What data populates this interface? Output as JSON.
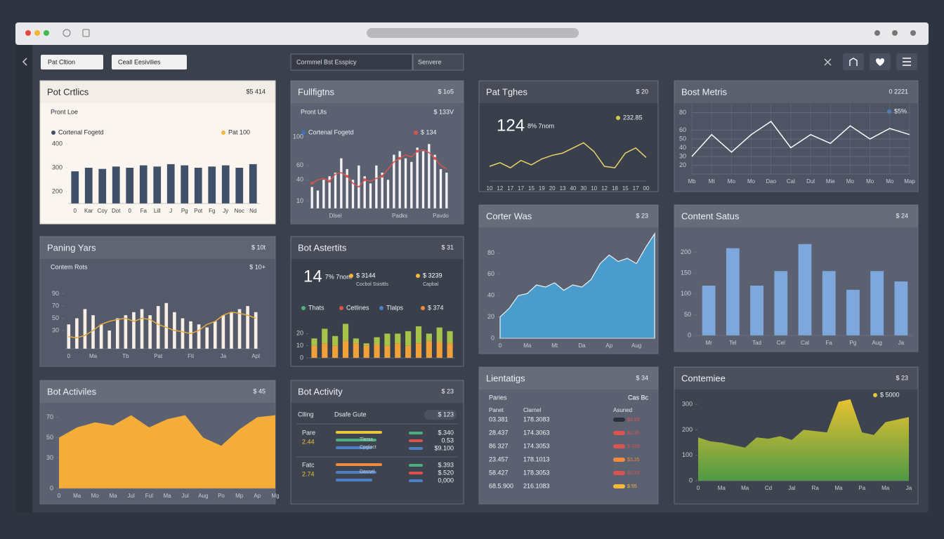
{
  "toolbar": {
    "filter1": "Pat Cltion",
    "filter2": "Ceall Eesivilies",
    "search": "Cormmel Bst Esspicy",
    "select": "Senvere"
  },
  "chart_data": [
    {
      "type": "bar",
      "theme": "light",
      "background": "#fbf5f0",
      "title": "Pot Crtlics",
      "badge": "$5 414",
      "subtitle": "Pront Loe",
      "legend": [
        {
          "label": "Cortenal Fogetd",
          "color": "#3f5068"
        },
        {
          "label": "Pat 100",
          "color": "#f5b83d"
        }
      ],
      "categories": [
        "0",
        "Kar",
        "Coy",
        "Dot",
        "0",
        "Fa",
        "Lill",
        "J",
        "Pg",
        "Pot",
        "Fg",
        "Jy",
        "Noc",
        "Nd"
      ],
      "series": [
        {
          "color": "#3f5068",
          "values": [
            285,
            300,
            295,
            305,
            300,
            310,
            305,
            315,
            310,
            300,
            305,
            310,
            300,
            315
          ]
        }
      ],
      "ylim": [
        150,
        400
      ],
      "yticks": [
        200,
        300,
        400
      ]
    },
    {
      "type": "combo",
      "theme": "dark",
      "background": "#5b6170",
      "title": "Fullfigtns",
      "badge": "$ 1o5",
      "subtitle": "Pront Uls",
      "subtitle2": "$ 133V",
      "legend": [
        {
          "label": "Cortenal Fogetd",
          "color": "#3f72b8"
        },
        {
          "label": "$ 134",
          "color": "#d9534f"
        }
      ],
      "categories": [
        null,
        null,
        null,
        null,
        "Dlsel",
        null,
        null,
        null,
        null,
        null,
        null,
        null,
        null,
        null,
        null,
        "Padks",
        null,
        null,
        null,
        null,
        null,
        null,
        "Pavdo",
        null
      ],
      "series": [
        {
          "color": "#f4f4f6",
          "values": [
            30,
            25,
            40,
            45,
            50,
            70,
            55,
            40,
            60,
            45,
            35,
            60,
            50,
            40,
            75,
            80,
            70,
            65,
            85,
            80,
            90,
            75,
            55,
            50
          ]
        },
        {
          "color": "#d9534f",
          "values": [
            35,
            40,
            42,
            38,
            48,
            50,
            45,
            35,
            30,
            40,
            38,
            42,
            45,
            55,
            65,
            70,
            75,
            72,
            80,
            82,
            78,
            70,
            60,
            55
          ]
        }
      ],
      "ylim": [
        0,
        100
      ],
      "yticks": [
        10,
        40,
        60,
        100
      ]
    },
    {
      "type": "line",
      "theme": "dark",
      "background": "#3a3f4c",
      "title": "Pat Tghes",
      "badge": "$ 20",
      "kpi": "124",
      "kpi_sub": "8% 7nom",
      "legend": [
        {
          "label": "232.85",
          "color": "#c8d34a"
        }
      ],
      "categories": [
        "10",
        "12",
        "17",
        "17",
        "15",
        "19",
        "20",
        "13",
        "40",
        "30",
        "10",
        "12",
        "18",
        "15",
        "17",
        "00"
      ],
      "series": [
        {
          "color": "#e8d36a",
          "values": [
            20,
            25,
            18,
            28,
            22,
            30,
            35,
            38,
            45,
            52,
            40,
            20,
            18,
            38,
            45,
            32
          ]
        }
      ],
      "ylim": [
        0,
        60
      ]
    },
    {
      "type": "line",
      "theme": "dark",
      "background": "#4e5464",
      "title": "Bost Metris",
      "badge": "0 2221",
      "grid": true,
      "legend": [
        {
          "label": "$5%",
          "color": "#4d7fc4"
        }
      ],
      "categories": [
        "Mb",
        "Mt",
        "Mo",
        "Mo",
        "Dao",
        "Cal",
        "Dul",
        "Mie",
        "Mo",
        "Mo",
        "Mo",
        "Map"
      ],
      "series": [
        {
          "color": "#ffffff",
          "values": [
            30,
            55,
            35,
            55,
            70,
            40,
            55,
            45,
            65,
            50,
            62,
            55
          ]
        }
      ],
      "ylim": [
        10,
        90
      ],
      "yticks": [
        20,
        30,
        40,
        50,
        60,
        80
      ]
    },
    {
      "type": "combo",
      "theme": "dark",
      "background": "#545a6a",
      "title": "Paning Yars",
      "badge": "$ 10t",
      "subtitle": "Contem Rots",
      "subtitle2": "$ 10+",
      "legend": [],
      "categories": [
        "0",
        null,
        null,
        "Ma",
        null,
        null,
        null,
        "Tb",
        null,
        null,
        null,
        "Pat",
        null,
        null,
        null,
        "Fti",
        null,
        null,
        null,
        "Ja",
        null,
        null,
        null,
        "Apl"
      ],
      "series": [
        {
          "color": "#f7efe6",
          "values": [
            40,
            50,
            65,
            55,
            40,
            30,
            50,
            55,
            60,
            65,
            55,
            70,
            75,
            60,
            50,
            45,
            40,
            35,
            45,
            55,
            60,
            65,
            70,
            60
          ]
        },
        {
          "color": "#e6a840",
          "values": [
            20,
            18,
            22,
            30,
            40,
            45,
            48,
            50,
            45,
            50,
            48,
            40,
            35,
            30,
            28,
            25,
            30,
            40,
            45,
            55,
            60,
            58,
            55,
            50
          ]
        }
      ],
      "ylim": [
        0,
        100
      ],
      "yticks": [
        30,
        50,
        70,
        90
      ]
    },
    {
      "type": "stacked",
      "theme": "dark",
      "background": "#3a3f4c",
      "title": "Bot Astertits",
      "badge": "$ 31",
      "kpi": "14",
      "kpi_sub": "7% 7nom",
      "extra": [
        {
          "text": "$ 3144",
          "caption": "Cocbol Ssisttls",
          "color": "#f5b83d"
        },
        {
          "text": "$ 3239",
          "caption": "Capbal",
          "color": "#f5b83d"
        }
      ],
      "legend": [
        {
          "label": "Thats",
          "color": "#4caf7d"
        },
        {
          "label": "Cetlines",
          "color": "#d9534f"
        },
        {
          "label": "Tlalps",
          "color": "#4d7fc4"
        },
        {
          "label": "$ 374",
          "color": "#f08a3e"
        }
      ],
      "categories": [
        null,
        null,
        null,
        null,
        null,
        null,
        null,
        null,
        null,
        null,
        null,
        null,
        null,
        null
      ],
      "series": [
        {
          "color": "#f0a13a",
          "values": [
            10,
            12,
            10,
            14,
            12,
            10,
            11,
            10,
            12,
            10,
            12,
            14,
            13,
            12
          ]
        },
        {
          "color": "#a9c24a",
          "values": [
            6,
            12,
            8,
            14,
            4,
            2,
            6,
            10,
            8,
            12,
            14,
            6,
            12,
            10
          ]
        }
      ],
      "ylim": [
        0,
        30
      ],
      "yticks": [
        0,
        10,
        20
      ]
    },
    {
      "type": "area",
      "theme": "dark",
      "background": "#5b6170",
      "title": "Corter Was",
      "badge": "$ 23",
      "legend": [],
      "categories": [
        "0",
        null,
        null,
        "Ma",
        null,
        null,
        "Mt",
        null,
        null,
        "Da",
        null,
        null,
        "Ap",
        null,
        null,
        "Aug",
        null,
        null
      ],
      "series": [
        {
          "color": "#4a9ccc",
          "values": [
            20,
            28,
            40,
            42,
            50,
            48,
            52,
            45,
            50,
            48,
            55,
            70,
            78,
            72,
            75,
            70,
            85,
            98
          ]
        }
      ],
      "ylim": [
        0,
        100
      ],
      "yticks": [
        0,
        20,
        40,
        60,
        80
      ]
    },
    {
      "type": "bar",
      "theme": "dark",
      "background": "#5b6170",
      "title": "Content Satus",
      "badge": "$ 24",
      "legend": [],
      "categories": [
        "Mr",
        "Tel",
        "Tad",
        "Cel",
        "Cal",
        "Fa",
        "Pg",
        "Aug",
        "Ja"
      ],
      "series": [
        {
          "color": "#7ea7dc",
          "values": [
            120,
            210,
            120,
            155,
            220,
            155,
            110,
            155,
            130
          ]
        }
      ],
      "ylim": [
        0,
        250
      ],
      "yticks": [
        0,
        50,
        100,
        150,
        200
      ]
    },
    {
      "type": "area",
      "theme": "dark",
      "background": "#5b6170",
      "title": "Bot Activiles",
      "badge": "$ 45",
      "legend": [],
      "categories": [
        "0",
        "Ma",
        "Mo",
        "Ma",
        "Jul",
        "Ful",
        "Ma",
        "Jul",
        "Aug",
        "Po",
        "Mp",
        "Ap",
        "Mg"
      ],
      "series": [
        {
          "color": "#f5ad3a",
          "values": [
            50,
            60,
            65,
            62,
            72,
            60,
            68,
            72,
            50,
            42,
            58,
            70,
            72
          ]
        }
      ],
      "ylim": [
        0,
        80
      ],
      "yticks": [
        0,
        30,
        50,
        70
      ]
    },
    {
      "type": "list",
      "theme": "dark",
      "background": "#3e4350",
      "title": "Bot Activity",
      "badge": "$ 23",
      "header": [
        "Clling",
        "Dsafe Gute",
        "$ 123"
      ],
      "rows": [
        {
          "name": "Pare",
          "figure": "2.44",
          "notes": [
            "Tlerss",
            "Cpglact"
          ],
          "amounts": [
            "$.340",
            "0.53",
            "$9.100"
          ]
        },
        {
          "name": "Fatc",
          "figure": "2.74",
          "notes": [
            "Dassel"
          ],
          "amounts": [
            "$.393",
            "$.520",
            "0,000"
          ]
        }
      ]
    },
    {
      "type": "table",
      "theme": "dark",
      "background": "#5b6170",
      "title": "Lientatigs",
      "badge": "$ 34",
      "subtitle": "Paries",
      "subtitle2": "Cas Bc",
      "columns": [
        "Panet",
        "Clarnel",
        "Asuned"
      ],
      "rows": [
        [
          "03.381",
          "178.3083",
          "$3.33"
        ],
        [
          "28.437",
          "174.3063",
          "$2.35"
        ],
        [
          "86 327",
          "174.3053",
          "$ 335"
        ],
        [
          "23.457",
          "178.1013",
          "$3.35"
        ],
        [
          "58.427",
          "178.3053",
          "$3.33"
        ],
        [
          "68.5.900",
          "216.1083",
          "$ 55"
        ]
      ],
      "row_colors": [
        "#2a2f3a",
        "#d9534f",
        "#d9534f",
        "#f08a3e",
        "#d9534f",
        "#f5b83d"
      ]
    },
    {
      "type": "area",
      "theme": "dark",
      "background": "#3e4350",
      "title": "Contemiee",
      "badge": "$ 23",
      "gradient": [
        "#e8c230",
        "#4f9a45"
      ],
      "legend": [
        {
          "label": "$ 5000",
          "color": "#e8c53a"
        }
      ],
      "categories": [
        "0",
        null,
        "Ma",
        null,
        "Ma",
        null,
        "Cd",
        null,
        "Jal",
        null,
        "Ra",
        null,
        "Ma",
        null,
        "Pa",
        null,
        "Ma",
        null,
        "Ja"
      ],
      "series": [
        {
          "color": "#e0c02e",
          "values": [
            170,
            155,
            150,
            140,
            130,
            170,
            165,
            175,
            160,
            200,
            195,
            190,
            310,
            320,
            190,
            180,
            230,
            240,
            250
          ]
        }
      ],
      "ylim": [
        0,
        350
      ],
      "yticks": [
        0,
        100,
        200,
        300
      ]
    }
  ]
}
